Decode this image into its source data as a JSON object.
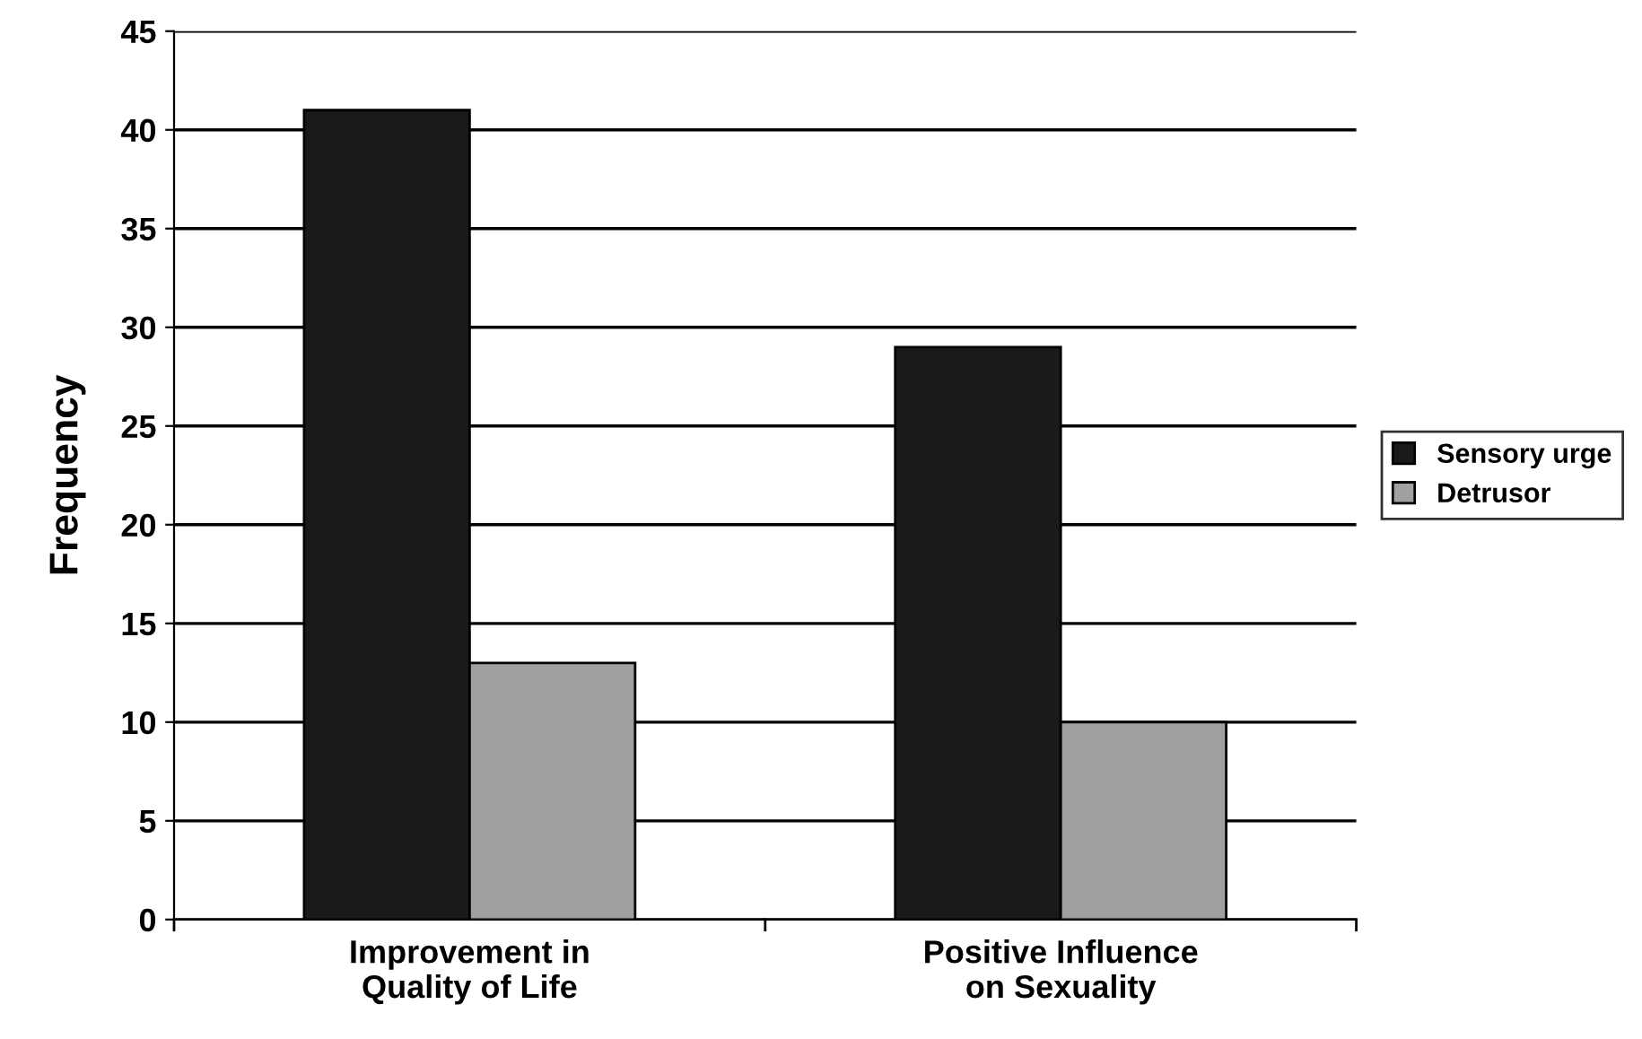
{
  "chart_data": {
    "type": "bar",
    "ylabel": "Frequency",
    "categories": [
      "Improvement in\nQuality of Life",
      "Positive Influence\non Sexuality"
    ],
    "series": [
      {
        "name": "Sensory urge",
        "color": "#1a1a1a",
        "values": [
          41,
          29
        ]
      },
      {
        "name": "Detrusor",
        "color": "#a0a0a0",
        "values": [
          13,
          10
        ]
      }
    ],
    "ylim": [
      0,
      45
    ],
    "yticks": [
      0,
      5,
      10,
      15,
      20,
      25,
      30,
      35,
      40,
      45
    ],
    "grid": "y",
    "legend": "right"
  }
}
